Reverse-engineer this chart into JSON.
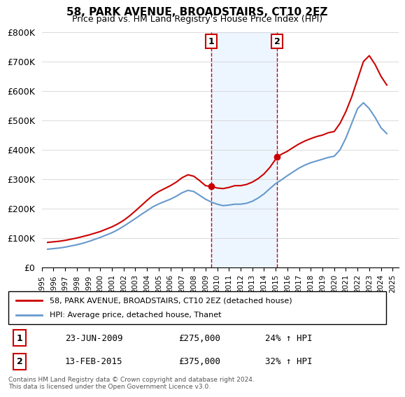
{
  "title": "58, PARK AVENUE, BROADSTAIRS, CT10 2EZ",
  "subtitle": "Price paid vs. HM Land Registry's House Price Index (HPI)",
  "legend_line1": "58, PARK AVENUE, BROADSTAIRS, CT10 2EZ (detached house)",
  "legend_line2": "HPI: Average price, detached house, Thanet",
  "annotation1_label": "1",
  "annotation1_date": "23-JUN-2009",
  "annotation1_price": "£275,000",
  "annotation1_hpi": "24% ↑ HPI",
  "annotation2_label": "2",
  "annotation2_date": "13-FEB-2015",
  "annotation2_price": "£375,000",
  "annotation2_hpi": "32% ↑ HPI",
  "footnote": "Contains HM Land Registry data © Crown copyright and database right 2024.\nThis data is licensed under the Open Government Licence v3.0.",
  "red_color": "#cc0000",
  "blue_color": "#6699cc",
  "vline_color": "#cc0000",
  "vline_style": "--",
  "vband_color": "#ddeeff",
  "ylim": [
    0,
    800000
  ],
  "yticks": [
    0,
    100000,
    200000,
    300000,
    400000,
    500000,
    600000,
    700000,
    800000
  ],
  "ytick_labels": [
    "£0",
    "£100K",
    "£200K",
    "£300K",
    "£400K",
    "£500K",
    "£600K",
    "£700K",
    "£800K"
  ],
  "xlim_start": 1995.0,
  "xlim_end": 2025.5,
  "red_x": [
    1995.5,
    1996.0,
    1996.5,
    1997.0,
    1997.5,
    1998.0,
    1998.5,
    1999.0,
    1999.5,
    2000.0,
    2000.5,
    2001.0,
    2001.5,
    2002.0,
    2002.5,
    2003.0,
    2003.5,
    2004.0,
    2004.5,
    2005.0,
    2005.5,
    2006.0,
    2006.5,
    2007.0,
    2007.5,
    2008.0,
    2008.5,
    2009.0,
    2009.47,
    2010.0,
    2010.5,
    2011.0,
    2011.5,
    2012.0,
    2012.5,
    2013.0,
    2013.5,
    2014.0,
    2014.5,
    2015.12,
    2015.5,
    2016.0,
    2016.5,
    2017.0,
    2017.5,
    2018.0,
    2018.5,
    2019.0,
    2019.5,
    2020.0,
    2020.5,
    2021.0,
    2021.5,
    2022.0,
    2022.5,
    2023.0,
    2023.5,
    2024.0,
    2024.5
  ],
  "red_y": [
    85000,
    87000,
    89000,
    92000,
    96000,
    100000,
    105000,
    110000,
    116000,
    122000,
    130000,
    138000,
    148000,
    160000,
    175000,
    192000,
    210000,
    228000,
    245000,
    258000,
    268000,
    278000,
    290000,
    305000,
    315000,
    310000,
    295000,
    278000,
    275000,
    270000,
    268000,
    272000,
    278000,
    278000,
    282000,
    290000,
    302000,
    318000,
    340000,
    375000,
    385000,
    395000,
    408000,
    420000,
    430000,
    438000,
    445000,
    450000,
    458000,
    462000,
    490000,
    530000,
    580000,
    640000,
    700000,
    720000,
    690000,
    650000,
    620000
  ],
  "blue_x": [
    1995.5,
    1996.0,
    1996.5,
    1997.0,
    1997.5,
    1998.0,
    1998.5,
    1999.0,
    1999.5,
    2000.0,
    2000.5,
    2001.0,
    2001.5,
    2002.0,
    2002.5,
    2003.0,
    2003.5,
    2004.0,
    2004.5,
    2005.0,
    2005.5,
    2006.0,
    2006.5,
    2007.0,
    2007.5,
    2008.0,
    2008.5,
    2009.0,
    2009.5,
    2010.0,
    2010.5,
    2011.0,
    2011.5,
    2012.0,
    2012.5,
    2013.0,
    2013.5,
    2014.0,
    2014.5,
    2015.0,
    2015.5,
    2016.0,
    2016.5,
    2017.0,
    2017.5,
    2018.0,
    2018.5,
    2019.0,
    2019.5,
    2020.0,
    2020.5,
    2021.0,
    2021.5,
    2022.0,
    2022.5,
    2023.0,
    2023.5,
    2024.0,
    2024.5
  ],
  "blue_y": [
    62000,
    64000,
    66000,
    69000,
    73000,
    77000,
    82000,
    88000,
    95000,
    102000,
    110000,
    118000,
    128000,
    140000,
    153000,
    166000,
    180000,
    193000,
    206000,
    216000,
    224000,
    232000,
    242000,
    254000,
    262000,
    258000,
    245000,
    232000,
    222000,
    215000,
    210000,
    212000,
    215000,
    215000,
    218000,
    225000,
    236000,
    250000,
    268000,
    285000,
    298000,
    312000,
    325000,
    338000,
    348000,
    356000,
    362000,
    368000,
    374000,
    378000,
    400000,
    440000,
    490000,
    540000,
    560000,
    540000,
    510000,
    475000,
    455000
  ],
  "sale1_x": 2009.47,
  "sale1_y": 275000,
  "sale2_x": 2015.12,
  "sale2_y": 375000,
  "vline1_x": 2009.47,
  "vline2_x": 2015.12
}
